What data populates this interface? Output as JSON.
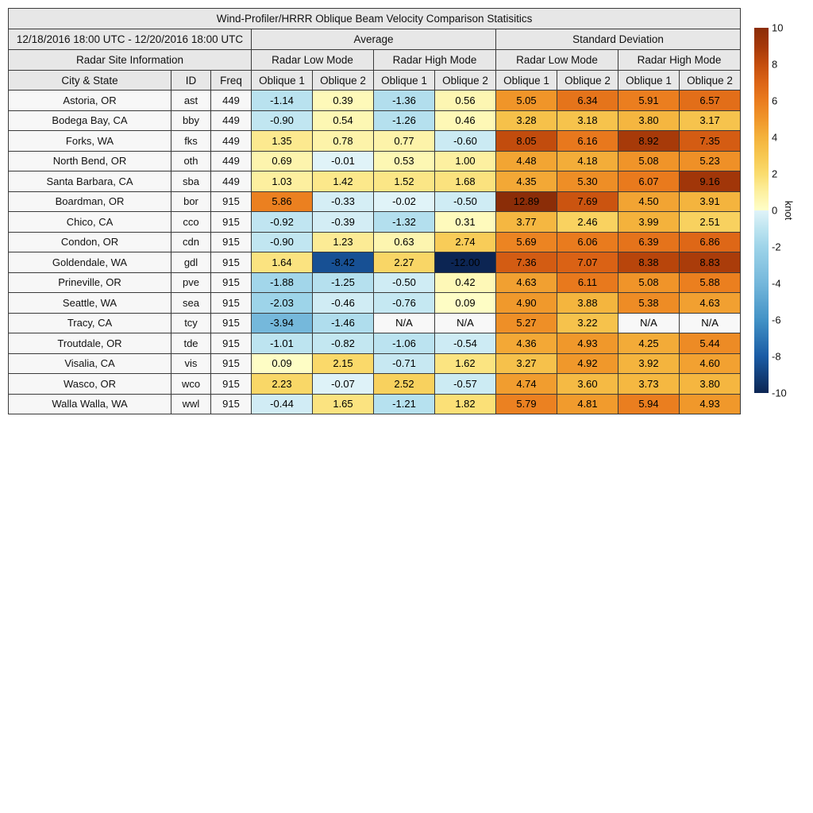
{
  "header": {
    "date_range": "12/18/2016 18:00 UTC - 12/20/2016 18:00 UTC",
    "average": "Average",
    "std_dev": "Standard Deviation",
    "radar_site_info": "Radar Site Information",
    "low_mode": "Radar Low Mode",
    "high_mode": "Radar High Mode",
    "city_state": "City & State",
    "id": "ID",
    "freq": "Freq",
    "oblique1": "Oblique 1",
    "oblique2": "Oblique 2"
  },
  "colors": {
    "header_bg": "#e7e7e7",
    "label_bg": "#f7f7f7",
    "na_bg": "#f8f8f8",
    "border": "#3a3a3a",
    "colormap": [
      {
        "v": -10,
        "c": "#0C2553"
      },
      {
        "v": -8,
        "c": "#1A5CA5"
      },
      {
        "v": -6,
        "c": "#4292C6"
      },
      {
        "v": -4,
        "c": "#74B7DB"
      },
      {
        "v": -2,
        "c": "#9ED4E9"
      },
      {
        "v": -1,
        "c": "#BDE4F0"
      },
      {
        "v": -0.01,
        "c": "#E0F3F8"
      },
      {
        "v": 0.01,
        "c": "#FEFEC8"
      },
      {
        "v": 1,
        "c": "#FDF0A0"
      },
      {
        "v": 2,
        "c": "#FADC6E"
      },
      {
        "v": 3,
        "c": "#F7C750"
      },
      {
        "v": 4,
        "c": "#F4B23C"
      },
      {
        "v": 5,
        "c": "#F0962A"
      },
      {
        "v": 6,
        "c": "#EA7C1E"
      },
      {
        "v": 7,
        "c": "#DC6416"
      },
      {
        "v": 8,
        "c": "#C44D0D"
      },
      {
        "v": 9,
        "c": "#A53809"
      },
      {
        "v": 10,
        "c": "#8B2D08"
      }
    ]
  },
  "chart_data": {
    "type": "heatmap",
    "title": "Wind-Profiler/HRRR Oblique Beam Velocity Comparison Statisitics",
    "subtitle": "12/18/2016 18:00 UTC - 12/20/2016 18:00 UTC",
    "column_groups": [
      "Average / Radar Low Mode",
      "Average / Radar High Mode",
      "Standard Deviation / Radar Low Mode",
      "Standard Deviation / Radar High Mode"
    ],
    "columns": [
      "City & State",
      "ID",
      "Freq",
      "Avg Low Oblique 1",
      "Avg Low Oblique 2",
      "Avg High Oblique 1",
      "Avg High Oblique 2",
      "SD Low Oblique 1",
      "SD Low Oblique 2",
      "SD High Oblique 1",
      "SD High Oblique 2"
    ],
    "rows": [
      {
        "city": "Astoria, OR",
        "id": "ast",
        "freq": "449",
        "values": [
          "-1.14",
          "0.39",
          "-1.36",
          "0.56",
          "5.05",
          "6.34",
          "5.91",
          "6.57"
        ]
      },
      {
        "city": "Bodega Bay, CA",
        "id": "bby",
        "freq": "449",
        "values": [
          "-0.90",
          "0.54",
          "-1.26",
          "0.46",
          "3.28",
          "3.18",
          "3.80",
          "3.17"
        ]
      },
      {
        "city": "Forks, WA",
        "id": "fks",
        "freq": "449",
        "values": [
          "1.35",
          "0.78",
          "0.77",
          "-0.60",
          "8.05",
          "6.16",
          "8.92",
          "7.35"
        ]
      },
      {
        "city": "North Bend, OR",
        "id": "oth",
        "freq": "449",
        "values": [
          "0.69",
          "-0.01",
          "0.53",
          "1.00",
          "4.48",
          "4.18",
          "5.08",
          "5.23"
        ]
      },
      {
        "city": "Santa Barbara, CA",
        "id": "sba",
        "freq": "449",
        "values": [
          "1.03",
          "1.42",
          "1.52",
          "1.68",
          "4.35",
          "5.30",
          "6.07",
          "9.16"
        ]
      },
      {
        "city": "Boardman, OR",
        "id": "bor",
        "freq": "915",
        "values": [
          "5.86",
          "-0.33",
          "-0.02",
          "-0.50",
          "12.89",
          "7.69",
          "4.50",
          "3.91"
        ]
      },
      {
        "city": "Chico, CA",
        "id": "cco",
        "freq": "915",
        "values": [
          "-0.92",
          "-0.39",
          "-1.32",
          "0.31",
          "3.77",
          "2.46",
          "3.99",
          "2.51"
        ]
      },
      {
        "city": "Condon, OR",
        "id": "cdn",
        "freq": "915",
        "values": [
          "-0.90",
          "1.23",
          "0.63",
          "2.74",
          "5.69",
          "6.06",
          "6.39",
          "6.86"
        ]
      },
      {
        "city": "Goldendale, WA",
        "id": "gdl",
        "freq": "915",
        "values": [
          "1.64",
          "-8.42",
          "2.27",
          "-12.00",
          "7.36",
          "7.07",
          "8.38",
          "8.83"
        ]
      },
      {
        "city": "Prineville, OR",
        "id": "pve",
        "freq": "915",
        "values": [
          "-1.88",
          "-1.25",
          "-0.50",
          "0.42",
          "4.63",
          "6.11",
          "5.08",
          "5.88"
        ]
      },
      {
        "city": "Seattle, WA",
        "id": "sea",
        "freq": "915",
        "values": [
          "-2.03",
          "-0.46",
          "-0.76",
          "0.09",
          "4.90",
          "3.88",
          "5.38",
          "4.63"
        ]
      },
      {
        "city": "Tracy, CA",
        "id": "tcy",
        "freq": "915",
        "values": [
          "-3.94",
          "-1.46",
          "N/A",
          "N/A",
          "5.27",
          "3.22",
          "N/A",
          "N/A"
        ]
      },
      {
        "city": "Troutdale, OR",
        "id": "tde",
        "freq": "915",
        "values": [
          "-1.01",
          "-0.82",
          "-1.06",
          "-0.54",
          "4.36",
          "4.93",
          "4.25",
          "5.44"
        ]
      },
      {
        "city": "Visalia, CA",
        "id": "vis",
        "freq": "915",
        "values": [
          "0.09",
          "2.15",
          "-0.71",
          "1.62",
          "3.27",
          "4.92",
          "3.92",
          "4.60"
        ]
      },
      {
        "city": "Wasco, OR",
        "id": "wco",
        "freq": "915",
        "values": [
          "2.23",
          "-0.07",
          "2.52",
          "-0.57",
          "4.74",
          "3.60",
          "3.73",
          "3.80"
        ]
      },
      {
        "city": "Walla Walla, WA",
        "id": "wwl",
        "freq": "915",
        "values": [
          "-0.44",
          "1.65",
          "-1.21",
          "1.82",
          "5.79",
          "4.81",
          "5.94",
          "4.93"
        ]
      }
    ],
    "colorbar": {
      "label": "knot",
      "min": -10,
      "max": 10,
      "ticks": [
        "10",
        "8",
        "6",
        "4",
        "2",
        "0",
        "-2",
        "-4",
        "-6",
        "-8",
        "-10"
      ]
    }
  }
}
